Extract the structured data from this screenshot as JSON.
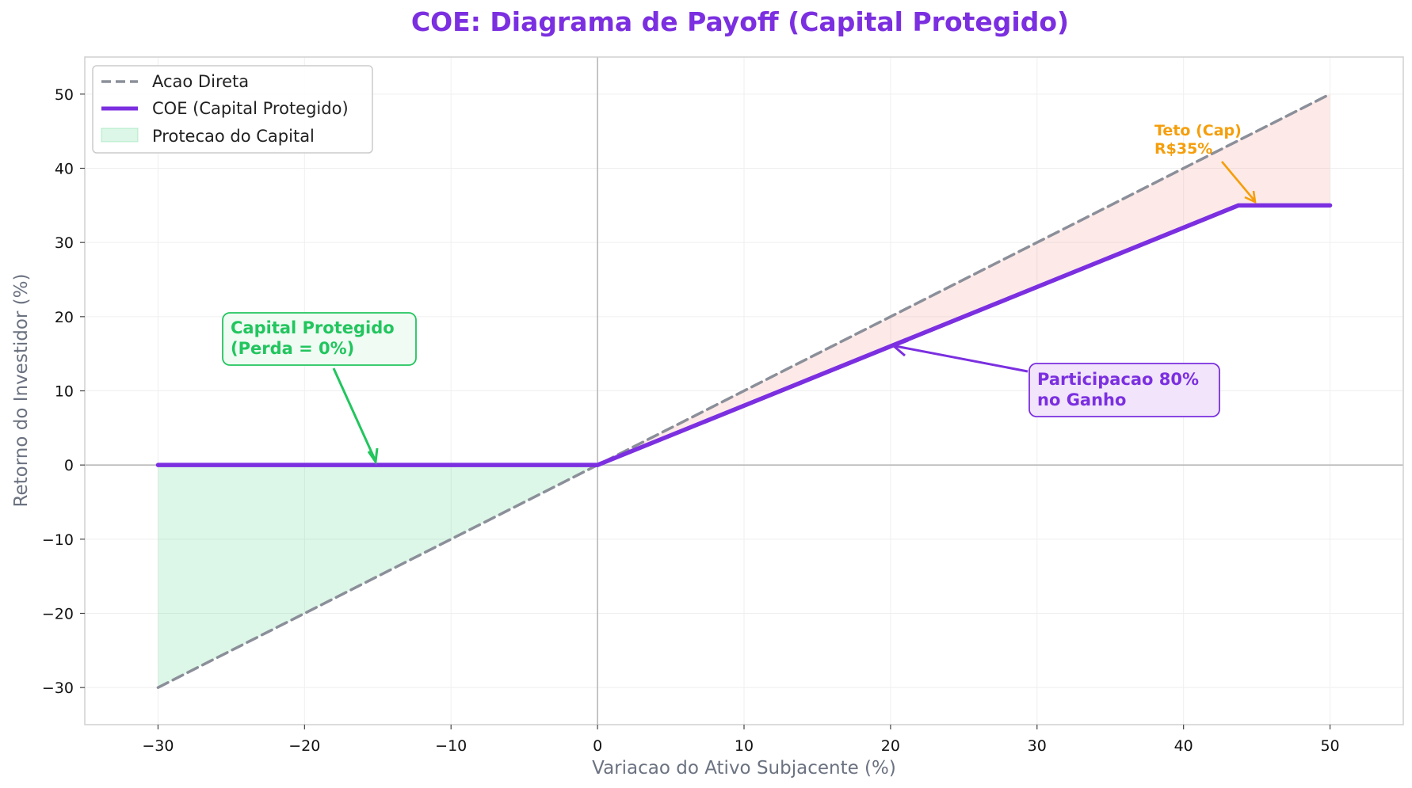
{
  "chart_data": {
    "type": "line",
    "title": "COE: Diagrama de Payoff (Capital Protegido)",
    "xlabel": "Variacao do Ativo Subjacente (%)",
    "ylabel": "Retorno do Investidor (%)",
    "xlim": [
      -35,
      55
    ],
    "ylim": [
      -35,
      55
    ],
    "xticks": [
      -30,
      -20,
      -10,
      0,
      10,
      20,
      30,
      40,
      50
    ],
    "yticks": [
      -30,
      -20,
      -10,
      0,
      10,
      20,
      30,
      40,
      50
    ],
    "xtick_labels": [
      "−30",
      "−20",
      "−10",
      "0",
      "10",
      "20",
      "30",
      "40",
      "50"
    ],
    "ytick_labels": [
      "−30",
      "−20",
      "−10",
      "0",
      "10",
      "20",
      "30",
      "40",
      "50"
    ],
    "grid": true,
    "legend_position": "upper-left",
    "series": [
      {
        "name": "Acao Direta",
        "style": "dashed",
        "color": "#8b8f99",
        "x": [
          -30,
          50
        ],
        "y": [
          -30,
          50
        ]
      },
      {
        "name": "COE (Capital Protegido)",
        "style": "solid",
        "color": "#7b2fe0",
        "x": [
          -30,
          0,
          43.75,
          50
        ],
        "y": [
          0,
          0,
          35,
          35
        ]
      }
    ],
    "fills": [
      {
        "name": "Protecao do Capital",
        "color": "#2ecc71",
        "x": [
          -30,
          0
        ],
        "lower": [
          -30,
          0
        ],
        "upper": [
          0,
          0
        ]
      },
      {
        "color": "#f28b82",
        "x": [
          0,
          43.75,
          50
        ],
        "lower": [
          0,
          35,
          35
        ],
        "upper": [
          0,
          43.75,
          50
        ]
      }
    ],
    "annotations": [
      {
        "id": "capital",
        "lines": [
          "Capital Protegido",
          "(Perda = 0%)"
        ],
        "color": "#22c55e",
        "boxed": true,
        "target": [
          -15,
          0
        ]
      },
      {
        "id": "participacao",
        "lines": [
          "Participacao 80%",
          "no Ganho"
        ],
        "color": "#7b2fe0",
        "boxed": true,
        "target": [
          20,
          16
        ]
      },
      {
        "id": "teto",
        "lines": [
          "Teto (Cap)",
          "R$35%"
        ],
        "color": "#f59e0b",
        "boxed": false,
        "target": [
          45,
          35
        ]
      }
    ]
  },
  "colors": {
    "title": "#7b2fe0",
    "axis": "#d0d0d0",
    "grid": "#efefef",
    "zero_line": "#b8b8b8"
  }
}
